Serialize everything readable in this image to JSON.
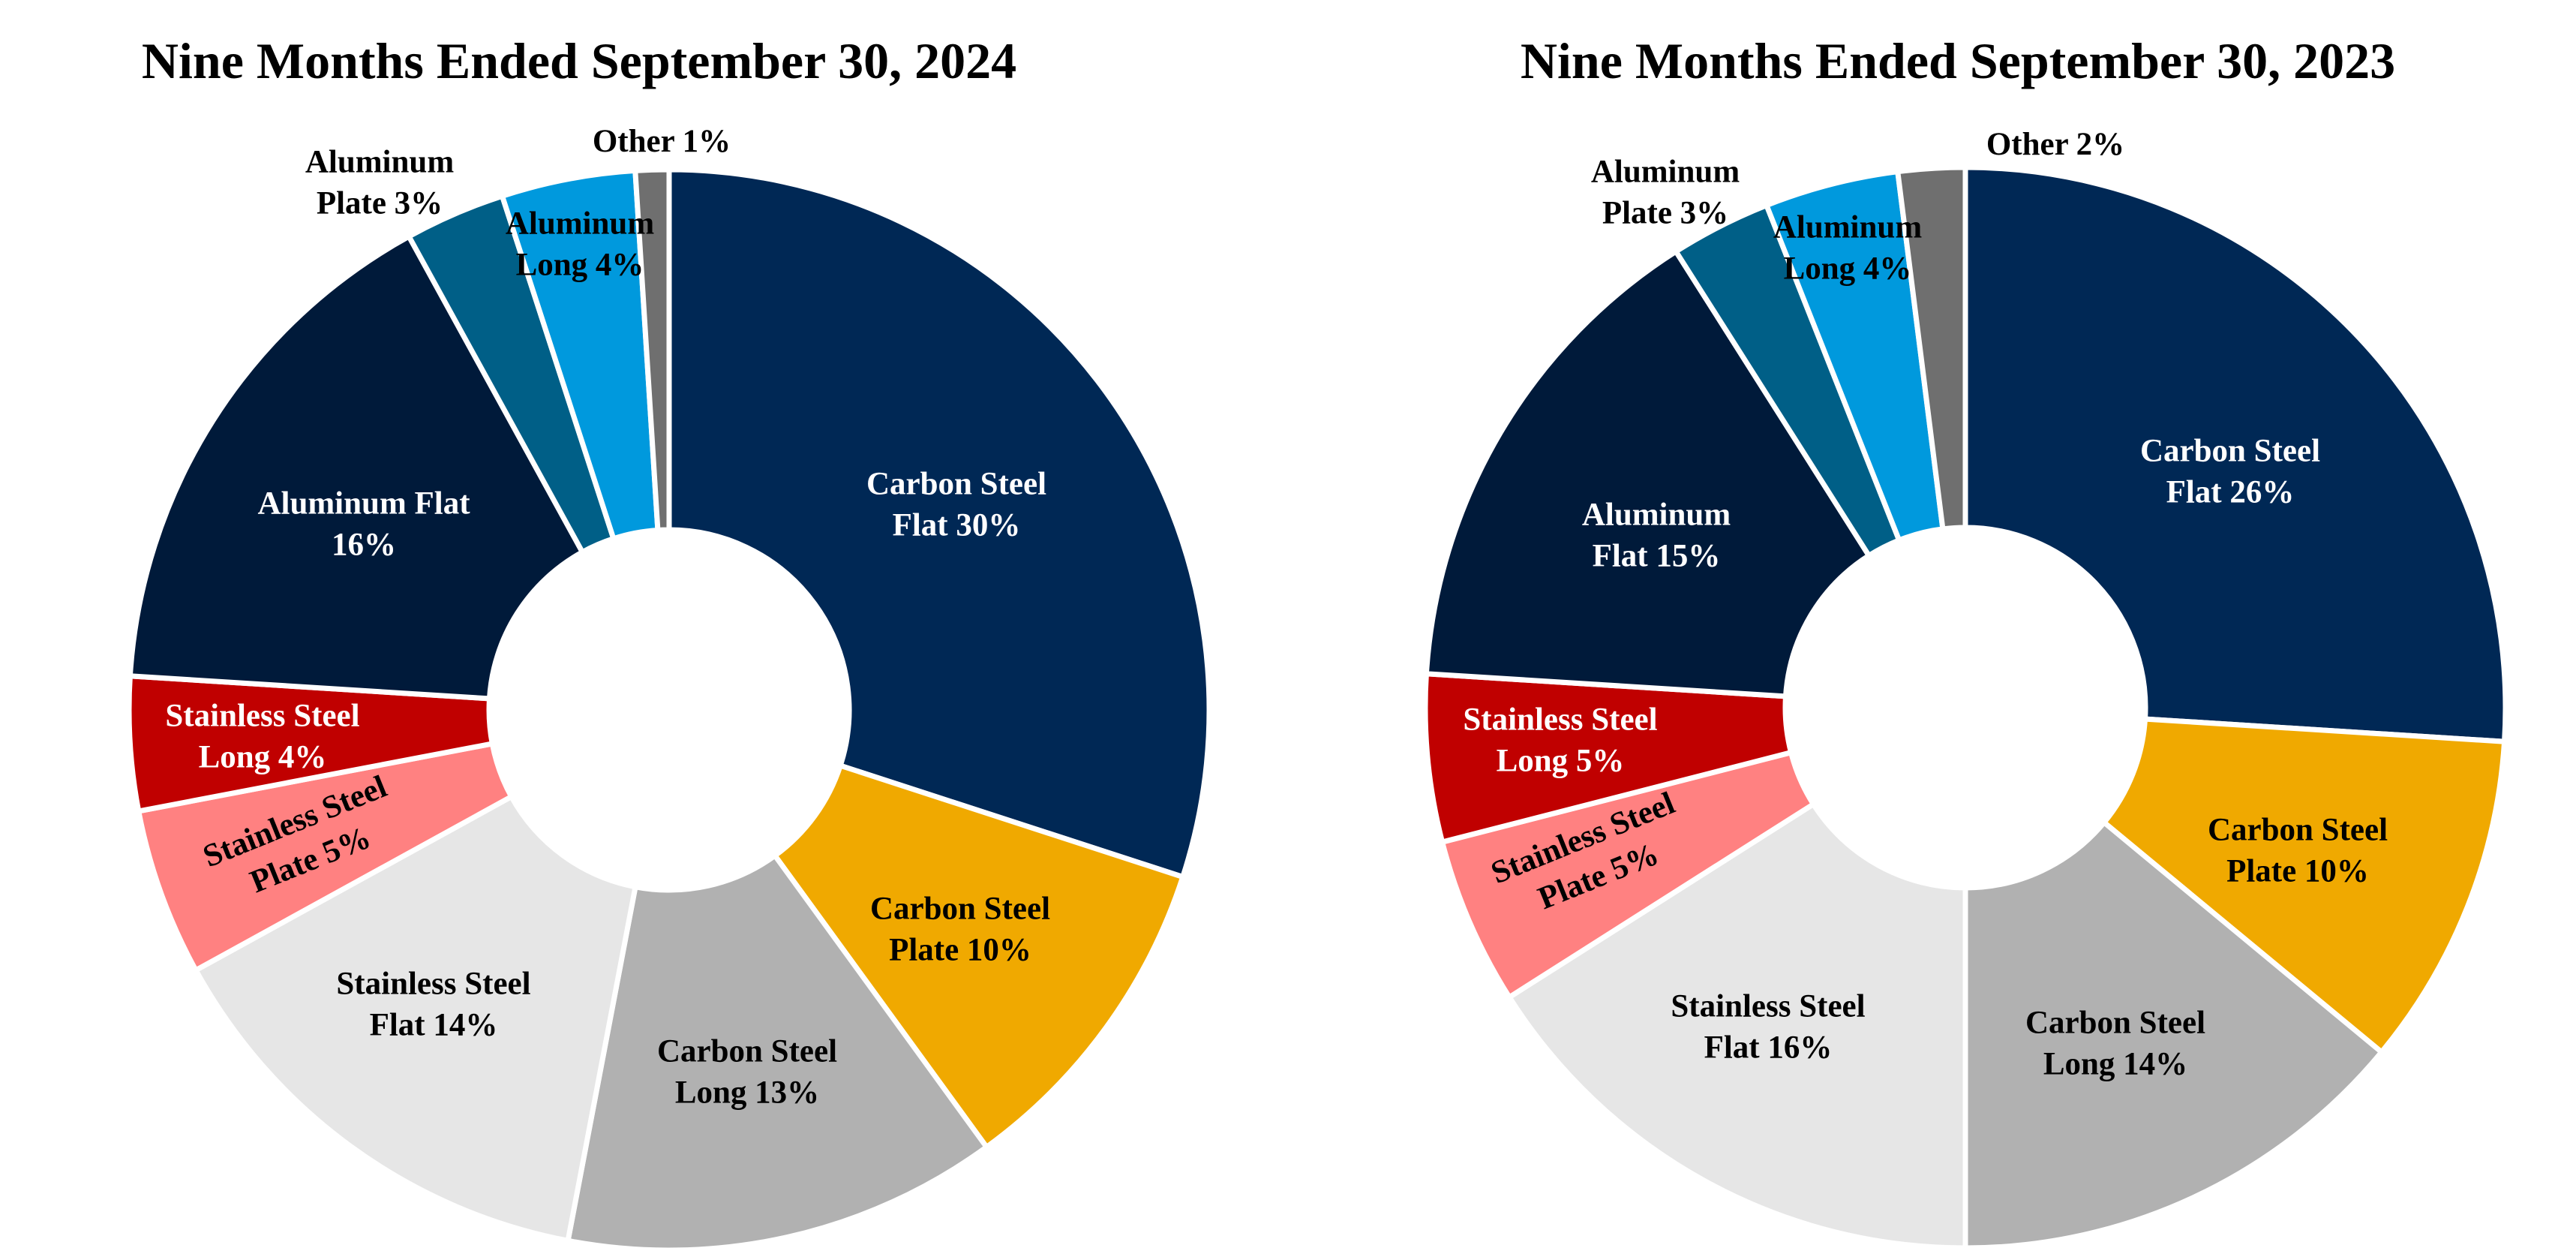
{
  "chart_data": [
    {
      "type": "pie",
      "title": "Nine Months Ended September 30, 2024",
      "slices": [
        {
          "label_lines": [
            "Carbon Steel",
            "Flat 30%"
          ],
          "value": 30,
          "color": "#002855",
          "label_color": "#ffffff"
        },
        {
          "label_lines": [
            "Carbon Steel",
            "Plate 10%"
          ],
          "value": 10,
          "color": "#f0a900",
          "label_color": "#000000"
        },
        {
          "label_lines": [
            "Carbon Steel",
            "Long 13%"
          ],
          "value": 13,
          "color": "#b1b1b1",
          "label_color": "#000000"
        },
        {
          "label_lines": [
            "Stainless Steel",
            "Flat 14%"
          ],
          "value": 14,
          "color": "#e6e6e6",
          "label_color": "#000000"
        },
        {
          "label_lines": [
            "Stainless Steel",
            "Plate 5%"
          ],
          "value": 5,
          "color": "#ff8181",
          "label_color": "#000000"
        },
        {
          "label_lines": [
            "Stainless Steel",
            "Long  4%"
          ],
          "value": 4,
          "color": "#c00000",
          "label_color": "#ffffff"
        },
        {
          "label_lines": [
            "Aluminum Flat",
            "16%"
          ],
          "value": 16,
          "color": "#001a3a",
          "label_color": "#ffffff"
        },
        {
          "label_lines": [
            "Aluminum",
            "Plate 3%"
          ],
          "value": 3,
          "color": "#005f87",
          "label_color": "#000000"
        },
        {
          "label_lines": [
            "Aluminum",
            "Long 4%"
          ],
          "value": 4,
          "color": "#0099dd",
          "label_color": "#000000"
        },
        {
          "label_lines": [
            "Other 1%"
          ],
          "value": 1,
          "color": "#6f6f6f",
          "label_color": "#000000"
        }
      ]
    },
    {
      "type": "pie",
      "title": "Nine Months Ended September 30, 2023",
      "slices": [
        {
          "label_lines": [
            "Carbon Steel",
            "Flat 26%"
          ],
          "value": 26,
          "color": "#002855",
          "label_color": "#ffffff"
        },
        {
          "label_lines": [
            "Carbon Steel",
            "Plate 10%"
          ],
          "value": 10,
          "color": "#f0a900",
          "label_color": "#000000"
        },
        {
          "label_lines": [
            "Carbon Steel",
            "Long 14%"
          ],
          "value": 14,
          "color": "#b1b1b1",
          "label_color": "#000000"
        },
        {
          "label_lines": [
            "Stainless Steel",
            "Flat 16%"
          ],
          "value": 16,
          "color": "#e6e6e6",
          "label_color": "#000000"
        },
        {
          "label_lines": [
            "Stainless Steel",
            "Plate 5%"
          ],
          "value": 5,
          "color": "#ff8181",
          "label_color": "#000000"
        },
        {
          "label_lines": [
            "Stainless Steel",
            "Long  5%"
          ],
          "value": 5,
          "color": "#c00000",
          "label_color": "#ffffff"
        },
        {
          "label_lines": [
            "Aluminum",
            "Flat 15%"
          ],
          "value": 15,
          "color": "#001a3a",
          "label_color": "#ffffff"
        },
        {
          "label_lines": [
            "Aluminum",
            "Plate 3%"
          ],
          "value": 3,
          "color": "#005f87",
          "label_color": "#000000"
        },
        {
          "label_lines": [
            "Aluminum",
            "Long 4%"
          ],
          "value": 4,
          "color": "#0099dd",
          "label_color": "#000000"
        },
        {
          "label_lines": [
            "Other 2%"
          ],
          "value": 2,
          "color": "#6f6f6f",
          "label_color": "#000000"
        }
      ]
    }
  ]
}
